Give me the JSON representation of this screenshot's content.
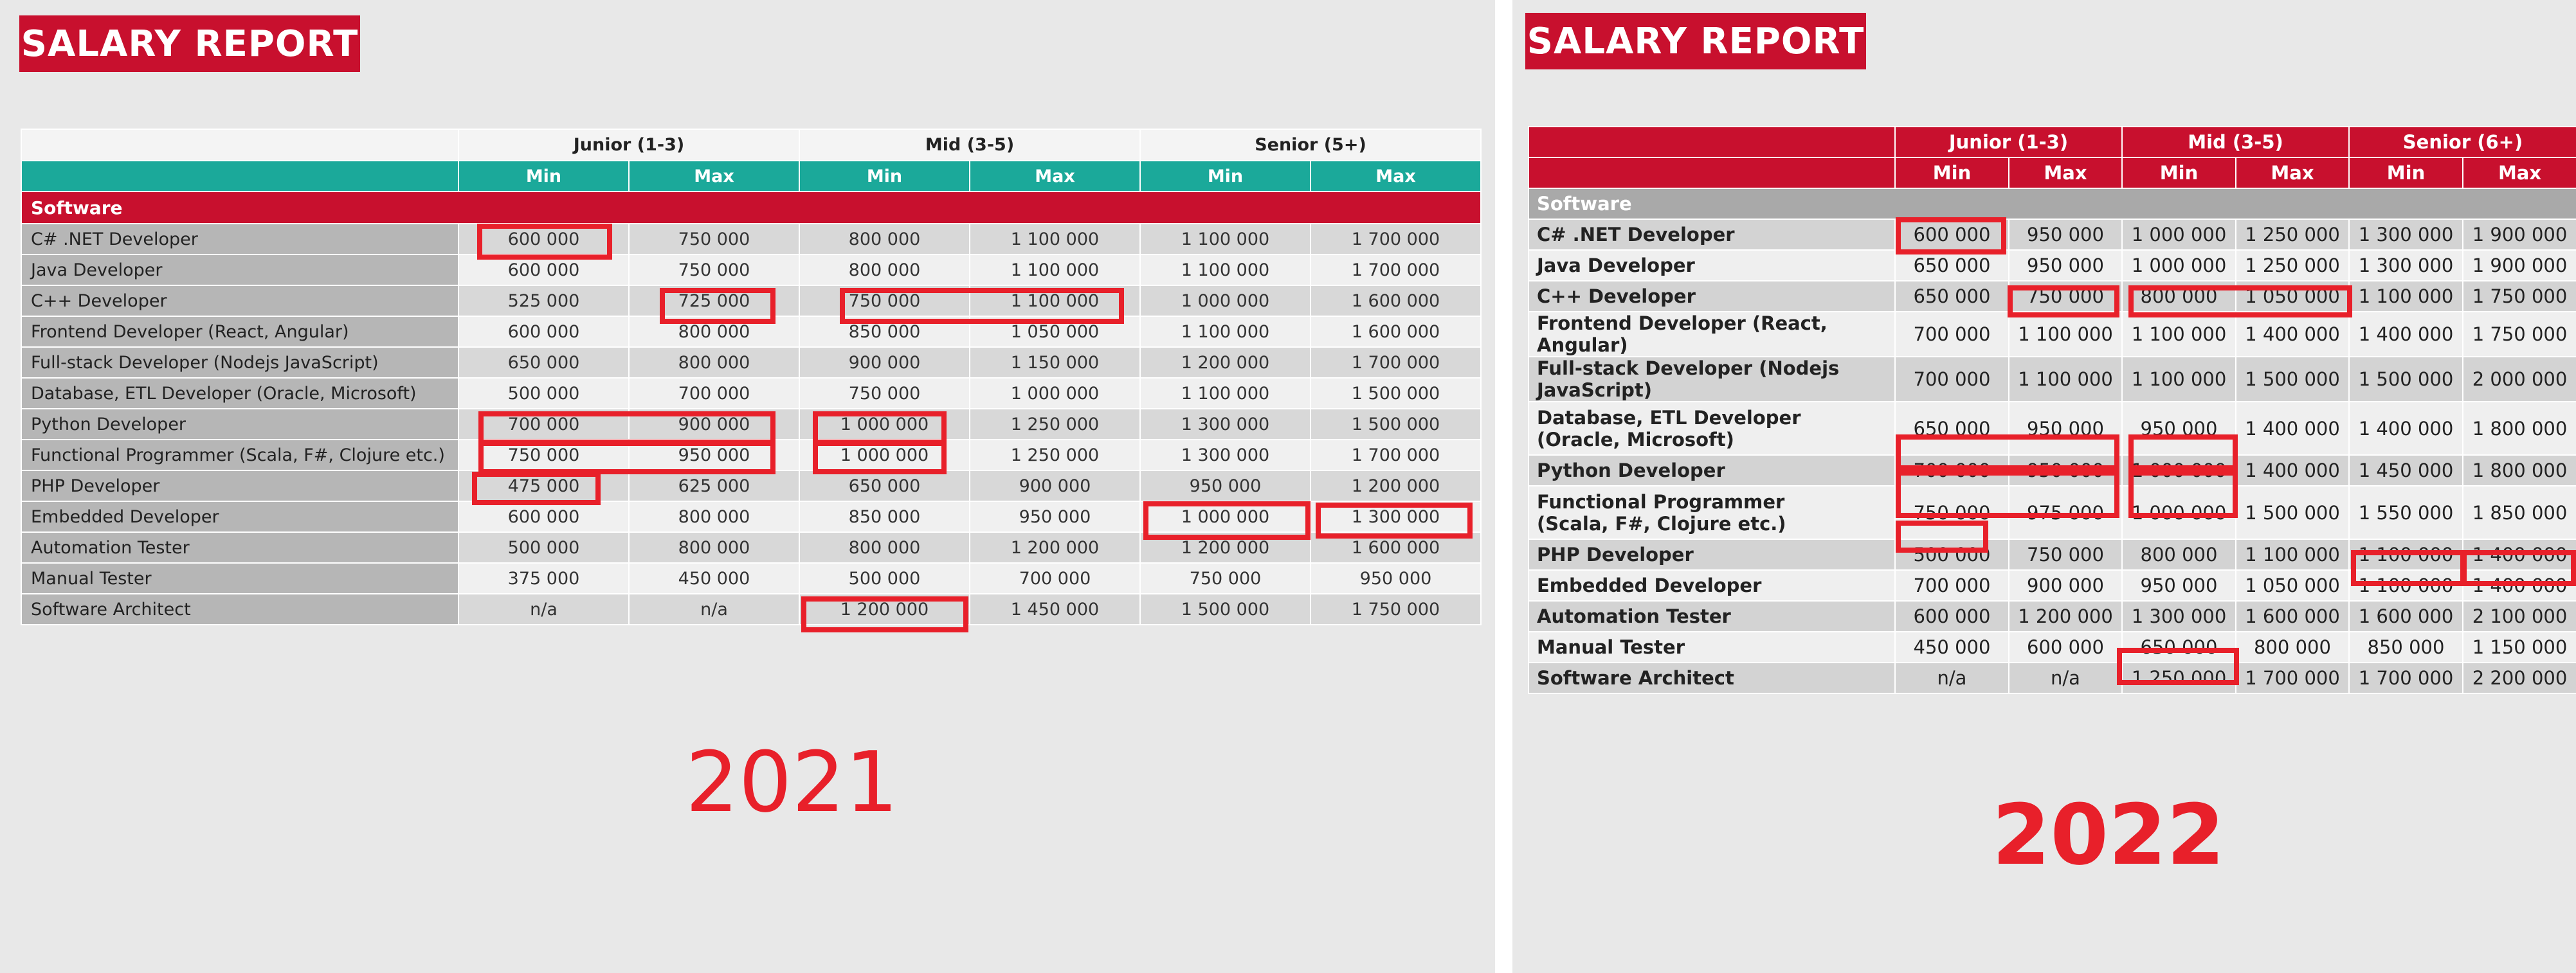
{
  "r2021": {
    "title": "SALARY REPORT",
    "year": "2021",
    "levels": [
      "Junior (1-3)",
      "Mid (3-5)",
      "Senior (5+)"
    ],
    "min_label": "Min",
    "max_label": "Max",
    "section": "Software",
    "rows": [
      {
        "role": "C# .NET Developer",
        "v": [
          "600 000",
          "750 000",
          "800 000",
          "1 100 000",
          "1 100 000",
          "1 700 000"
        ]
      },
      {
        "role": "Java Developer",
        "v": [
          "600 000",
          "750 000",
          "800 000",
          "1 100 000",
          "1 100 000",
          "1 700 000"
        ]
      },
      {
        "role": "C++ Developer",
        "v": [
          "525 000",
          "725 000",
          "750 000",
          "1 100 000",
          "1 000 000",
          "1 600 000"
        ]
      },
      {
        "role": "Frontend Developer (React, Angular)",
        "v": [
          "600 000",
          "800 000",
          "850 000",
          "1 050 000",
          "1 100 000",
          "1 600 000"
        ]
      },
      {
        "role": "Full-stack Developer (Nodejs JavaScript)",
        "v": [
          "650 000",
          "800 000",
          "900 000",
          "1 150 000",
          "1 200 000",
          "1 700 000"
        ]
      },
      {
        "role": "Database, ETL Developer (Oracle, Microsoft)",
        "v": [
          "500 000",
          "700 000",
          "750 000",
          "1 000 000",
          "1 100 000",
          "1 500 000"
        ]
      },
      {
        "role": "Python Developer",
        "v": [
          "700 000",
          "900 000",
          "1 000 000",
          "1 250 000",
          "1 300 000",
          "1 500 000"
        ]
      },
      {
        "role": "Functional Programmer (Scala, F#, Clojure etc.)",
        "v": [
          "750 000",
          "950 000",
          "1 000 000",
          "1 250 000",
          "1 300 000",
          "1 700 000"
        ]
      },
      {
        "role": "PHP Developer",
        "v": [
          "475 000",
          "625 000",
          "650 000",
          "900 000",
          "950 000",
          "1 200 000"
        ]
      },
      {
        "role": "Embedded Developer",
        "v": [
          "600 000",
          "800 000",
          "850 000",
          "950 000",
          "1 000 000",
          "1 300 000"
        ]
      },
      {
        "role": "Automation Tester",
        "v": [
          "500 000",
          "800 000",
          "800 000",
          "1 200 000",
          "1 200 000",
          "1 600 000"
        ]
      },
      {
        "role": "Manual Tester",
        "v": [
          "375 000",
          "450 000",
          "500 000",
          "700 000",
          "750 000",
          "950 000"
        ]
      },
      {
        "role": "Software Architect",
        "v": [
          "n/a",
          "n/a",
          "1 200 000",
          "1 450 000",
          "1 500 000",
          "1 750 000"
        ]
      }
    ]
  },
  "r2022": {
    "title": "SALARY REPORT",
    "year": "2022",
    "levels": [
      "Junior (1-3)",
      "Mid (3-5)",
      "Senior (6+)"
    ],
    "min_label": "Min",
    "max_label": "Max",
    "section": "Software",
    "rows": [
      {
        "role": "C# .NET Developer",
        "role2": "",
        "v": [
          "600 000",
          "950 000",
          "1 000 000",
          "1 250 000",
          "1 300 000",
          "1 900 000"
        ]
      },
      {
        "role": "Java Developer",
        "role2": "",
        "v": [
          "650 000",
          "950 000",
          "1 000 000",
          "1 250 000",
          "1 300 000",
          "1 900 000"
        ]
      },
      {
        "role": "C++ Developer",
        "role2": "",
        "v": [
          "650 000",
          "750 000",
          "800 000",
          "1 050 000",
          "1 100 000",
          "1 750 000"
        ]
      },
      {
        "role": "Frontend Developer (React, Angular)",
        "role2": "",
        "v": [
          "700 000",
          "1 100 000",
          "1 100 000",
          "1 400 000",
          "1 400 000",
          "1 750 000"
        ]
      },
      {
        "role": "Full-stack Developer (Nodejs JavaScript)",
        "role2": "",
        "v": [
          "700 000",
          "1 100 000",
          "1 100 000",
          "1 500 000",
          "1 500 000",
          "2 000 000"
        ]
      },
      {
        "role": "Database, ETL Developer",
        "role2": "(Oracle, Microsoft)",
        "v": [
          "650 000",
          "950 000",
          "950 000",
          "1 400 000",
          "1 400 000",
          "1 800 000"
        ]
      },
      {
        "role": "Python Developer",
        "role2": "",
        "v": [
          "700 000",
          "950 000",
          "1 000 000",
          "1 400 000",
          "1 450 000",
          "1 800 000"
        ]
      },
      {
        "role": "Functional Programmer",
        "role2": "(Scala, F#, Clojure etc.)",
        "v": [
          "750 000",
          "975 000",
          "1 000 000",
          "1 500 000",
          "1 550 000",
          "1 850 000"
        ]
      },
      {
        "role": "PHP Developer",
        "role2": "",
        "v": [
          "500 000",
          "750 000",
          "800 000",
          "1 100 000",
          "1 100 000",
          "1 400 000"
        ]
      },
      {
        "role": "Embedded Developer",
        "role2": "",
        "v": [
          "700 000",
          "900 000",
          "950 000",
          "1 050 000",
          "1 100 000",
          "1 400 000"
        ]
      },
      {
        "role": "Automation Tester",
        "role2": "",
        "v": [
          "600 000",
          "1 200 000",
          "1 300 000",
          "1 600 000",
          "1 600 000",
          "2 100 000"
        ]
      },
      {
        "role": "Manual Tester",
        "role2": "",
        "v": [
          "450 000",
          "600 000",
          "650 000",
          "800 000",
          "850 000",
          "1 150 000"
        ]
      },
      {
        "role": "Software Architect",
        "role2": "",
        "v": [
          "n/a",
          "n/a",
          "1 250 000",
          "1 700 000",
          "1 700 000",
          "2 200 000"
        ]
      }
    ]
  }
}
